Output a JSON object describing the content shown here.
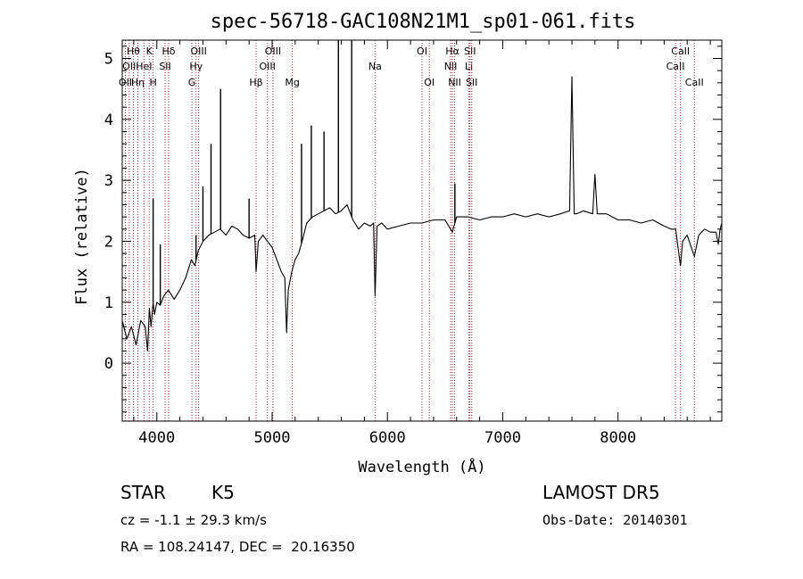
{
  "chart_data": {
    "type": "line",
    "title": "spec-56718-GAC108N21M1_sp01-061.fits",
    "xlabel": "Wavelength (Å)",
    "ylabel": "Flux (relative)",
    "xlim": [
      3700,
      8900
    ],
    "ylim": [
      -0.95,
      5.3
    ],
    "x_ticks": [
      4000,
      5000,
      6000,
      7000,
      8000
    ],
    "y_ticks": [
      0,
      1,
      2,
      3,
      4,
      5
    ],
    "grid": false,
    "series": [
      {
        "values_x": [
          3700,
          3740,
          3780,
          3820,
          3860,
          3900,
          3920,
          3935,
          3950,
          3968,
          3980,
          4000,
          4030,
          4060,
          4100,
          4150,
          4200,
          4250,
          4300,
          4330,
          4360,
          4400,
          4450,
          4500,
          4550,
          4600,
          4650,
          4700,
          4750,
          4800,
          4850,
          4861,
          4880,
          4920,
          4960,
          5000,
          5040,
          5080,
          5110,
          5125,
          5140,
          5170,
          5200,
          5230,
          5260,
          5300,
          5350,
          5400,
          5450,
          5500,
          5550,
          5600,
          5650,
          5700,
          5750,
          5800,
          5850,
          5880,
          5893,
          5910,
          5950,
          6000,
          6100,
          6200,
          6300,
          6400,
          6500,
          6563,
          6600,
          6700,
          6800,
          6900,
          7000,
          7100,
          7200,
          7300,
          7400,
          7500,
          7580,
          7600,
          7620,
          7640,
          7700,
          7780,
          7800,
          7820,
          7900,
          8000,
          8100,
          8200,
          8300,
          8400,
          8460,
          8500,
          8520,
          8542,
          8560,
          8600,
          8662,
          8700,
          8750,
          8800,
          8850,
          8870,
          8885,
          8900
        ],
        "values_y": [
          0.7,
          0.4,
          0.6,
          0.3,
          0.7,
          0.6,
          0.2,
          0.9,
          0.6,
          1.0,
          0.8,
          1.0,
          0.95,
          1.1,
          1.2,
          1.05,
          1.2,
          1.4,
          1.7,
          1.6,
          1.85,
          2.0,
          2.1,
          2.15,
          2.2,
          2.1,
          2.25,
          2.2,
          2.1,
          2.05,
          2.1,
          1.5,
          2.0,
          2.1,
          2.0,
          1.9,
          1.7,
          1.5,
          1.4,
          0.5,
          1.2,
          1.5,
          1.7,
          1.8,
          2.0,
          2.3,
          2.4,
          2.45,
          2.5,
          2.55,
          2.45,
          2.5,
          2.6,
          2.35,
          2.2,
          2.3,
          2.25,
          2.3,
          1.1,
          2.25,
          2.3,
          2.2,
          2.25,
          2.3,
          2.3,
          2.35,
          2.35,
          2.15,
          2.4,
          2.4,
          2.35,
          2.4,
          2.4,
          2.45,
          2.4,
          2.45,
          2.4,
          2.45,
          2.5,
          4.7,
          2.45,
          2.45,
          2.5,
          2.45,
          3.1,
          2.45,
          2.45,
          2.35,
          2.35,
          2.3,
          2.35,
          2.25,
          2.2,
          2.2,
          1.9,
          1.6,
          2.0,
          2.1,
          1.75,
          2.1,
          2.2,
          2.15,
          2.15,
          1.95,
          2.2,
          2.3
        ]
      }
    ],
    "emission_spikes": [
      {
        "x": 3968,
        "y": 2.7
      },
      {
        "x": 4030,
        "y": 1.95
      },
      {
        "x": 4340,
        "y": 2.1
      },
      {
        "x": 4400,
        "y": 2.9
      },
      {
        "x": 4470,
        "y": 3.6
      },
      {
        "x": 4553,
        "y": 4.5
      },
      {
        "x": 4800,
        "y": 2.7
      },
      {
        "x": 5255,
        "y": 3.6
      },
      {
        "x": 5340,
        "y": 3.9
      },
      {
        "x": 5450,
        "y": 3.8
      },
      {
        "x": 5575,
        "y": 5.3
      },
      {
        "x": 5690,
        "y": 5.3
      },
      {
        "x": 6585,
        "y": 2.95
      }
    ],
    "line_markers": [
      {
        "x": 3727,
        "label": "OII",
        "row": 3
      },
      {
        "x": 3760,
        "label": "OII",
        "row": 2
      },
      {
        "x": 3797,
        "label": "Hθ",
        "row": 1
      },
      {
        "x": 3835,
        "label": "Hη",
        "row": 3
      },
      {
        "x": 3889,
        "label": "HeI",
        "row": 2
      },
      {
        "x": 3934,
        "label": "K",
        "row": 1
      },
      {
        "x": 3968,
        "label": "H",
        "row": 3
      },
      {
        "x": 4072,
        "label": "SII",
        "row": 2
      },
      {
        "x": 4102,
        "label": "Hδ",
        "row": 1
      },
      {
        "x": 4304,
        "label": "G",
        "row": 3
      },
      {
        "x": 4340,
        "label": "Hγ",
        "row": 2
      },
      {
        "x": 4363,
        "label": "OIII",
        "row": 1
      },
      {
        "x": 4861,
        "label": "Hβ",
        "row": 3
      },
      {
        "x": 4959,
        "label": "OIII",
        "row": 2
      },
      {
        "x": 5007,
        "label": "OIII",
        "row": 1
      },
      {
        "x": 5175,
        "label": "Mg",
        "row": 3
      },
      {
        "x": 5893,
        "label": "Na",
        "row": 2
      },
      {
        "x": 6300,
        "label": "OI",
        "row": 1
      },
      {
        "x": 6363,
        "label": "OI",
        "row": 3
      },
      {
        "x": 6548,
        "label": "NII",
        "row": 2
      },
      {
        "x": 6563,
        "label": "Hα",
        "row": 1
      },
      {
        "x": 6583,
        "label": "NII",
        "row": 3
      },
      {
        "x": 6707,
        "label": "Li",
        "row": 2
      },
      {
        "x": 6716,
        "label": "SII",
        "row": 1
      },
      {
        "x": 6731,
        "label": "SII",
        "row": 3
      },
      {
        "x": 8498,
        "label": "CaII",
        "row": 2
      },
      {
        "x": 8542,
        "label": "CaII",
        "row": 1
      },
      {
        "x": 8662,
        "label": "CaII",
        "row": 3
      }
    ],
    "colors": {
      "spectrum": "#000000",
      "line_markers": "#aa2222",
      "axes": "#000000"
    }
  },
  "info": {
    "class_label": "STAR",
    "subclass": "K5",
    "survey": "LAMOST DR5",
    "cz": "cz = -1.1 ± 29.3 km/s",
    "obs_date": "Obs-Date: 20140301",
    "radec": "RA = 108.24147, DEC =  20.16350"
  }
}
